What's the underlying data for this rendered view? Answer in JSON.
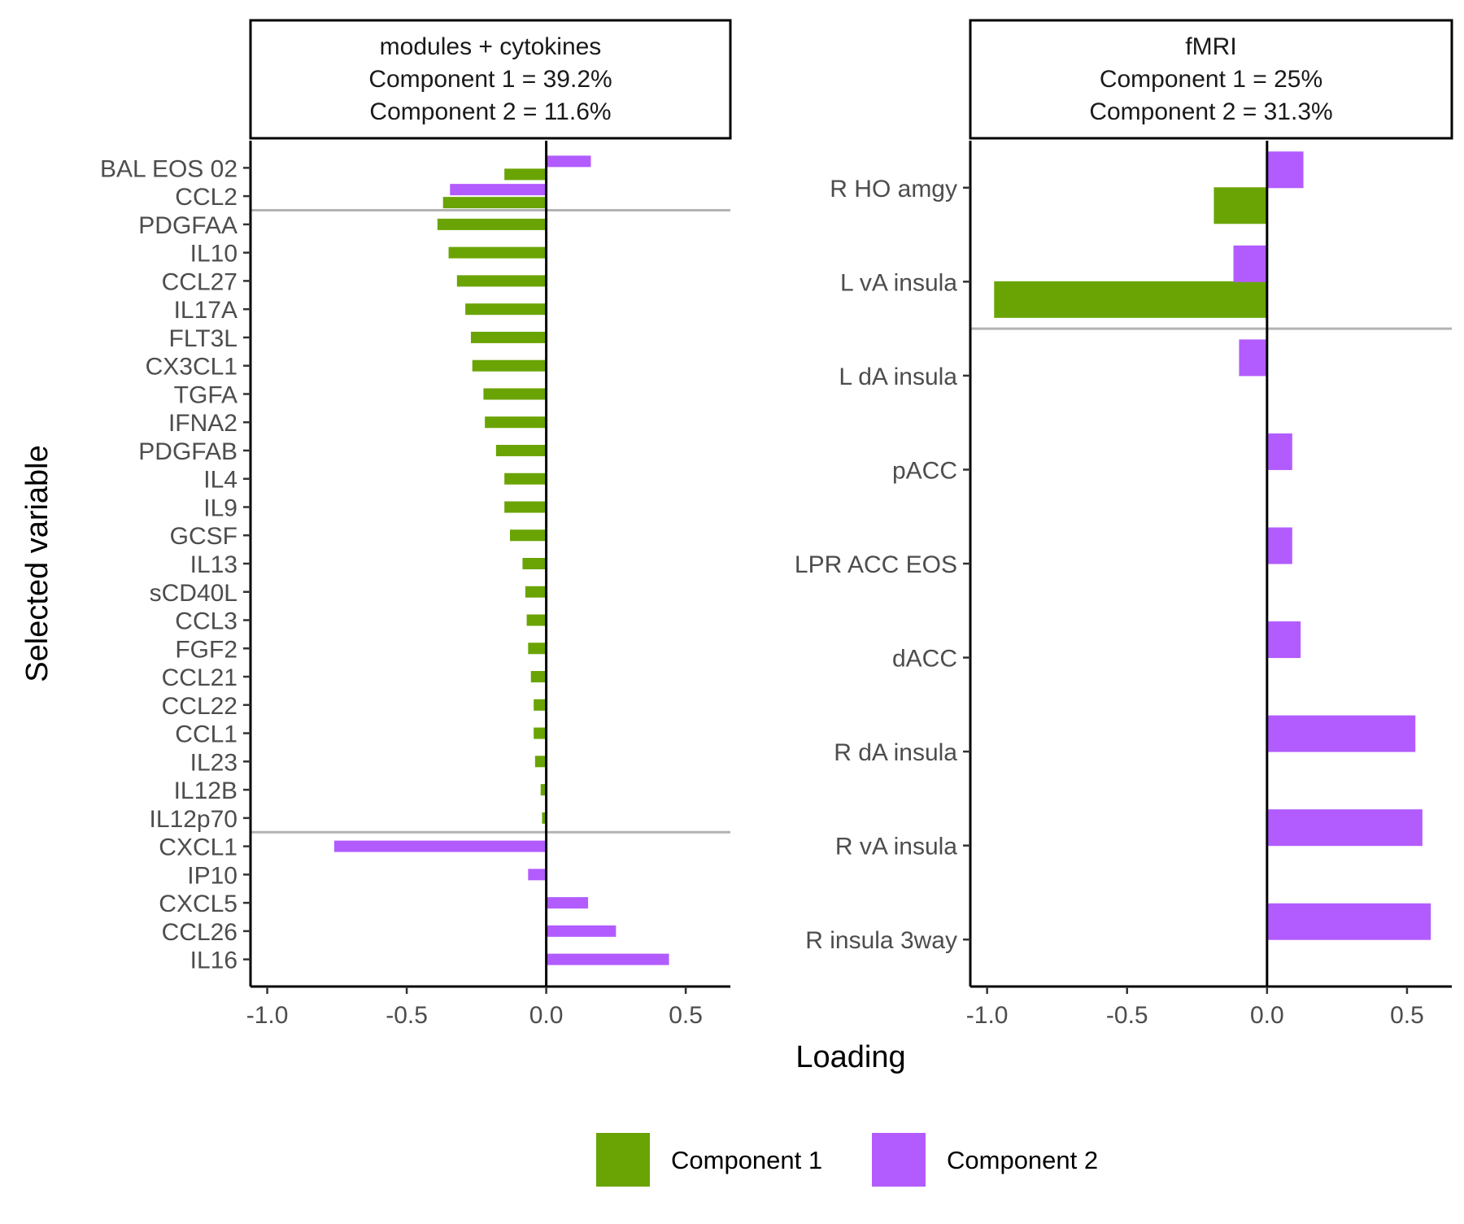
{
  "axes": {
    "x_title": "Loading",
    "y_title": "Selected variable"
  },
  "legend": {
    "position": "bottom",
    "items": [
      {
        "label": "Component 1",
        "color": "#6aa404"
      },
      {
        "label": "Component 2",
        "color": "#b25cff"
      }
    ]
  },
  "colors": {
    "component_1": "#6aa404",
    "component_2": "#b25cff",
    "separator": "#b3b3b3"
  },
  "chart_data": [
    {
      "type": "bar",
      "orientation": "horizontal",
      "panel_title_lines": [
        "modules + cytokines",
        "Component 1 = 39.2%",
        "Component 2 = 11.6%"
      ],
      "xlabel": "Loading",
      "ylabel": "Selected variable",
      "xlim": [
        -1.06,
        0.66
      ],
      "x_ticks": [
        -1.0,
        -0.5,
        0.0,
        0.5
      ],
      "x_tick_labels": [
        "-1.0",
        "-0.5",
        "0.0",
        "0.5"
      ],
      "grid": false,
      "categories": [
        "BAL EOS 02",
        "CCL2",
        "PDGFAA",
        "IL10",
        "CCL27",
        "IL17A",
        "FLT3L",
        "CX3CL1",
        "TGFA",
        "IFNA2",
        "PDGFAB",
        "IL4",
        "IL9",
        "GCSF",
        "IL13",
        "sCD40L",
        "CCL3",
        "FGF2",
        "CCL21",
        "CCL22",
        "CCL1",
        "IL23",
        "IL12B",
        "IL12p70",
        "CXCL1",
        "IP10",
        "CXCL5",
        "CCL26",
        "IL16"
      ],
      "series": [
        {
          "name": "Component 1",
          "values": [
            -0.15,
            -0.37,
            -0.39,
            -0.35,
            -0.32,
            -0.29,
            -0.27,
            -0.265,
            -0.225,
            -0.22,
            -0.18,
            -0.15,
            -0.15,
            -0.13,
            -0.085,
            -0.075,
            -0.07,
            -0.065,
            -0.055,
            -0.045,
            -0.045,
            -0.04,
            -0.02,
            -0.015,
            null,
            null,
            null,
            null,
            null
          ]
        },
        {
          "name": "Component 2",
          "values": [
            0.16,
            -0.345,
            null,
            null,
            null,
            null,
            null,
            null,
            null,
            null,
            null,
            null,
            null,
            null,
            null,
            null,
            null,
            null,
            null,
            null,
            null,
            null,
            null,
            null,
            -0.76,
            -0.065,
            0.15,
            0.25,
            0.44
          ]
        }
      ],
      "separators_after_categories": [
        "CCL2",
        "IL12p70"
      ]
    },
    {
      "type": "bar",
      "orientation": "horizontal",
      "panel_title_lines": [
        "fMRI",
        "Component 1 = 25%",
        "Component 2 = 31.3%"
      ],
      "xlabel": "Loading",
      "ylabel": "Selected variable",
      "xlim": [
        -1.06,
        0.66
      ],
      "x_ticks": [
        -1.0,
        -0.5,
        0.0,
        0.5
      ],
      "x_tick_labels": [
        "-1.0",
        "-0.5",
        "0.0",
        "0.5"
      ],
      "grid": false,
      "categories": [
        "R HO amgy",
        "L vA insula",
        "L dA insula",
        "pACC",
        "LPR ACC EOS",
        "dACC",
        "R dA insula",
        "R vA insula",
        "R insula 3way"
      ],
      "series": [
        {
          "name": "Component 1",
          "values": [
            -0.19,
            -0.975,
            null,
            null,
            null,
            null,
            null,
            null,
            null
          ]
        },
        {
          "name": "Component 2",
          "values": [
            0.13,
            -0.12,
            -0.1,
            0.09,
            0.09,
            0.12,
            0.53,
            0.555,
            0.585
          ]
        }
      ],
      "separators_after_categories": [
        "L vA insula"
      ]
    }
  ]
}
